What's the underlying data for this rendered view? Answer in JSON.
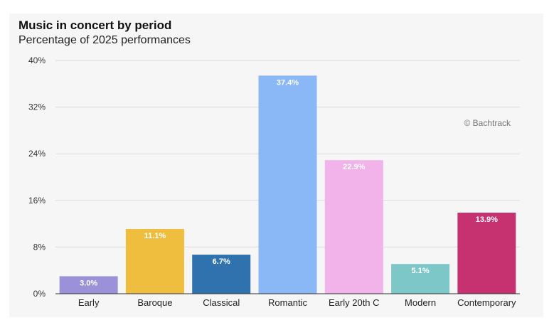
{
  "chart_data": {
    "type": "bar",
    "title": "Music in concert by period",
    "subtitle": "Percentage of 2025 performances",
    "categories": [
      "Early",
      "Baroque",
      "Classical",
      "Romantic",
      "Early 20th C",
      "Modern",
      "Contemporary"
    ],
    "values": [
      3.0,
      11.1,
      6.7,
      37.4,
      22.9,
      5.1,
      13.9
    ],
    "data_labels": [
      "3.0%",
      "11.1%",
      "6.7%",
      "37.4%",
      "22.9%",
      "5.1%",
      "13.9%"
    ],
    "colors": [
      "#9b91d9",
      "#f0be3f",
      "#2f72ad",
      "#8ab8f6",
      "#f2b2ea",
      "#7ec7c9",
      "#c5326f"
    ],
    "ylim": [
      0,
      40
    ],
    "yticks": [
      0,
      8,
      16,
      24,
      32,
      40
    ],
    "ytick_labels": [
      "0%",
      "8%",
      "16%",
      "24%",
      "32%",
      "40%"
    ],
    "xlabel": "",
    "ylabel": "",
    "grid": true,
    "credit": "© Bachtrack"
  }
}
